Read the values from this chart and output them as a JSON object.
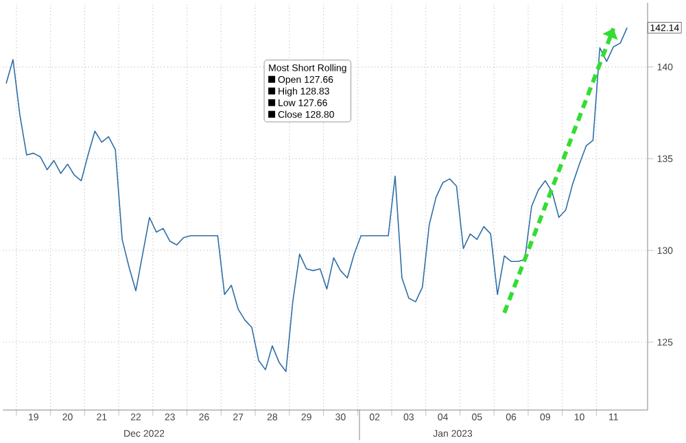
{
  "chart_data": {
    "type": "line",
    "legend_title": "Most Short Rolling",
    "annotations": [
      "Dec 2022",
      "Jan 2023",
      "Open 127.66",
      "High 128.83",
      "Low 127.66",
      "Close 128.80",
      "142.14"
    ],
    "categories": [
      null,
      null,
      null,
      null,
      "19",
      null,
      null,
      null,
      null,
      "20",
      null,
      null,
      null,
      null,
      "21",
      null,
      null,
      null,
      null,
      "22",
      null,
      null,
      null,
      null,
      "23",
      null,
      null,
      null,
      null,
      "26",
      null,
      null,
      null,
      null,
      "27",
      null,
      null,
      null,
      null,
      "28",
      null,
      null,
      null,
      null,
      "29",
      null,
      null,
      null,
      null,
      "30",
      null,
      null,
      null,
      null,
      "02",
      null,
      null,
      null,
      null,
      "03",
      null,
      null,
      null,
      null,
      "04",
      null,
      null,
      null,
      null,
      "05",
      null,
      null,
      null,
      null,
      "06",
      null,
      null,
      null,
      null,
      "09",
      null,
      null,
      null,
      null,
      "10",
      null,
      null,
      null,
      null,
      "11",
      null,
      null
    ],
    "ylim": [
      121.3,
      143.5
    ],
    "yticks": [
      125,
      130,
      135,
      140
    ],
    "grid": true,
    "series": [
      {
        "color": "#2e6ea6",
        "values": [
          139.1,
          140.4,
          137.4,
          135.2,
          135.3,
          135.1,
          134.4,
          134.9,
          134.2,
          134.7,
          134.1,
          133.8,
          135.2,
          136.5,
          135.9,
          136.2,
          135.5,
          130.6,
          129.1,
          127.8,
          129.8,
          131.8,
          131.0,
          131.2,
          130.5,
          130.3,
          130.7,
          130.8,
          130.8,
          130.8,
          130.8,
          130.8,
          127.6,
          128.1,
          126.8,
          126.2,
          125.8,
          124.0,
          123.5,
          124.8,
          123.9,
          123.4,
          127.2,
          129.8,
          129.0,
          128.9,
          129.0,
          127.9,
          129.6,
          128.9,
          128.5,
          129.8,
          130.8,
          130.8,
          130.8,
          130.8,
          130.8,
          134.05,
          128.5,
          127.4,
          127.2,
          128.0,
          131.4,
          132.9,
          133.7,
          133.9,
          133.5,
          130.1,
          130.9,
          130.6,
          131.3,
          130.9,
          127.6,
          129.7,
          129.4,
          129.4,
          129.5,
          132.4,
          133.3,
          133.8,
          133.2,
          131.8,
          132.2,
          133.6,
          134.7,
          135.7,
          136.0,
          141.05,
          140.3,
          141.1,
          141.3,
          142.14
        ]
      },
      {
        "type": "line",
        "color": "#33dd33",
        "line_style": "dashed",
        "values": [
          null,
          null,
          null,
          null,
          null,
          null,
          null,
          null,
          null,
          null,
          null,
          null,
          null,
          null,
          null,
          null,
          null,
          null,
          null,
          null,
          null,
          null,
          null,
          null,
          null,
          null,
          null,
          null,
          null,
          null,
          null,
          null,
          null,
          null,
          null,
          null,
          null,
          null,
          null,
          null,
          null,
          null,
          null,
          null,
          null,
          null,
          null,
          null,
          null,
          null,
          null,
          null,
          null,
          null,
          null,
          null,
          null,
          null,
          null,
          null,
          null,
          null,
          null,
          null,
          null,
          null,
          null,
          null,
          null,
          null,
          null,
          null,
          null,
          126.6,
          null,
          null,
          null,
          null,
          null,
          null,
          null,
          null,
          null,
          null,
          null,
          null,
          null,
          null,
          null,
          142.1,
          null,
          null
        ]
      }
    ]
  }
}
